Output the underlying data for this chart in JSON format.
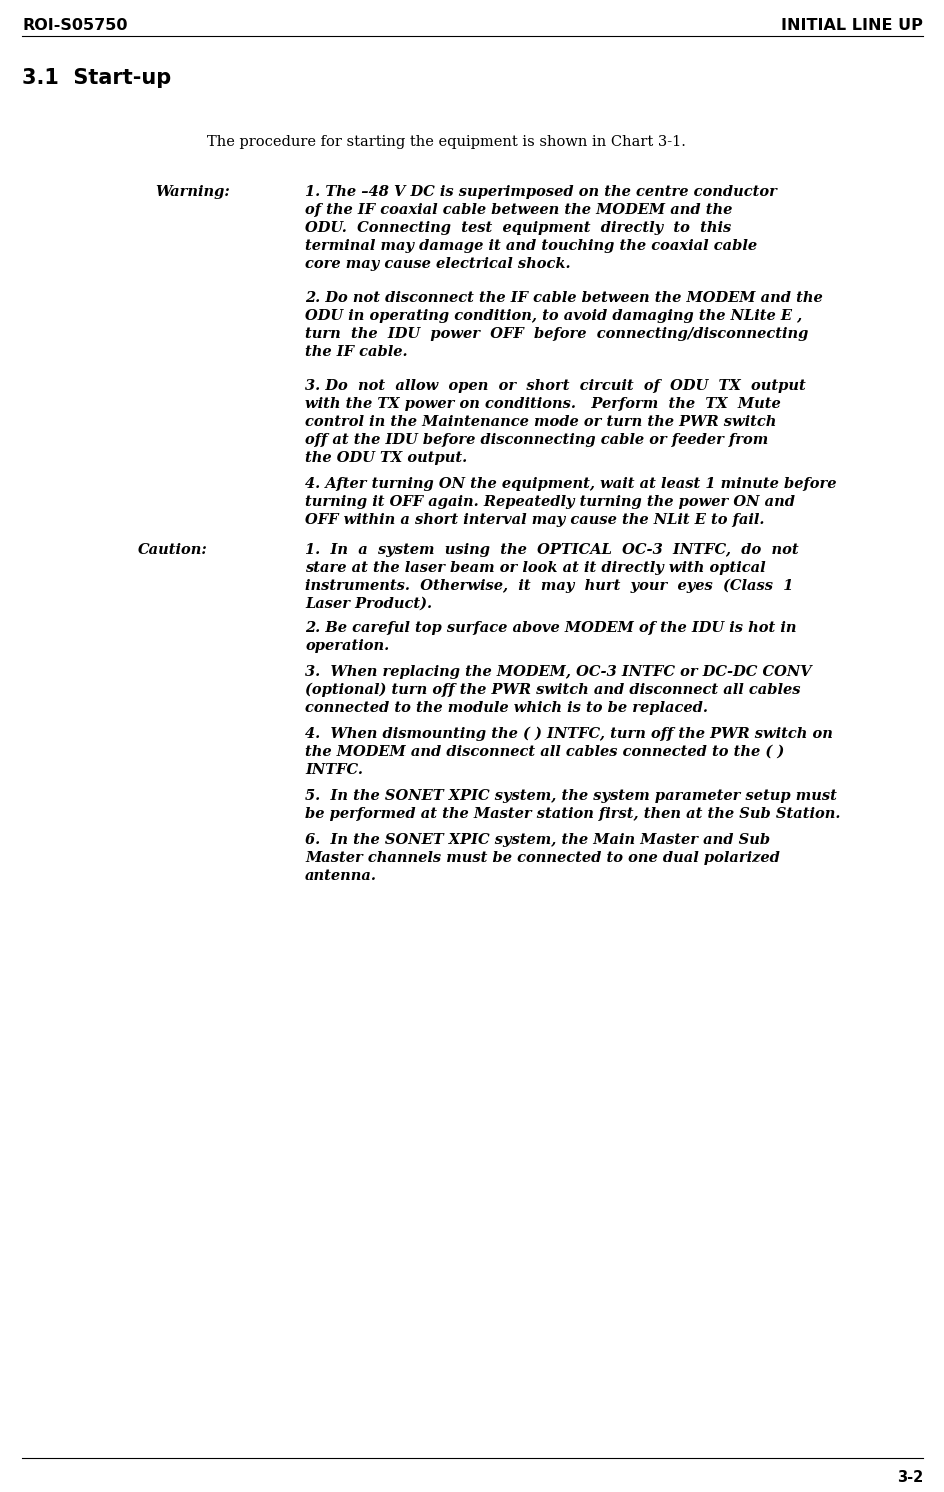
{
  "header_left": "ROI-S05750",
  "header_right": "INITIAL LINE UP",
  "section_title": "3.1  Start-up",
  "intro_text": "The procedure for starting the equipment is shown in Chart 3-1.",
  "warning_label": "Warning:",
  "caution_label": "Caution:",
  "footer_text": "3-2",
  "bg_color": "#ffffff",
  "text_color": "#000000",
  "header_fontsize": 11.5,
  "section_fontsize": 15,
  "body_fontsize": 10.5,
  "label_fontsize": 10.5,
  "intro_fontsize": 10.5,
  "warning_item1": [
    "1. The –48 V DC is superimposed on the centre conductor",
    "of the IF coaxial cable between the MODEM and the",
    "ODU.  Connecting  test  equipment  directly  to  this",
    "terminal may damage it and touching the coaxial cable",
    "core may cause electrical shock."
  ],
  "warning_item2": [
    "2. Do not disconnect the IF cable between the MODEM and the",
    "ODU in operating condition, to avoid damaging the NLite E ,",
    "turn  the  IDU  power  OFF  before  connecting/disconnecting",
    "the IF cable."
  ],
  "warning_item3": [
    "3. Do  not  allow  open  or  short  circuit  of  ODU  TX  output",
    "with the TX power on conditions.   Perform  the  TX  Mute",
    "control in the Maintenance mode or turn the PWR switch",
    "off at the IDU before disconnecting cable or feeder from",
    "the ODU TX output."
  ],
  "warning_item4": [
    "4. After turning ON the equipment, wait at least 1 minute before",
    "turning it OFF again. Repeatedly turning the power ON and",
    "OFF within a short interval may cause the NLit E to fail."
  ],
  "caution_item1": [
    "1.  In  a  system  using  the  OPTICAL  OC-3  INTFC,  do  not",
    "stare at the laser beam or look at it directly with optical",
    "instruments.  Otherwise,  it  may  hurt  your  eyes  (Class  1",
    "Laser Product)."
  ],
  "caution_item2": [
    "2. Be careful top surface above MODEM of the IDU is hot in",
    "operation."
  ],
  "caution_item3": [
    "3.  When replacing the MODEM, OC-3 INTFC or DC-DC CONV",
    "(optional) turn off the PWR switch and disconnect all cables",
    "connected to the module which is to be replaced."
  ],
  "caution_item4": [
    "4.  When dismounting the ( ) INTFC, turn off the PWR switch on",
    "the MODEM and disconnect all cables connected to the ( )",
    "INTFC."
  ],
  "caution_item5": [
    "5.  In the SONET XPIC system, the system parameter setup must",
    "be performed at the Master station first, then at the Sub Station."
  ],
  "caution_item6": [
    "6.  In the SONET XPIC system, the Main Master and Sub",
    "Master channels must be connected to one dual polarized",
    "antenna."
  ]
}
